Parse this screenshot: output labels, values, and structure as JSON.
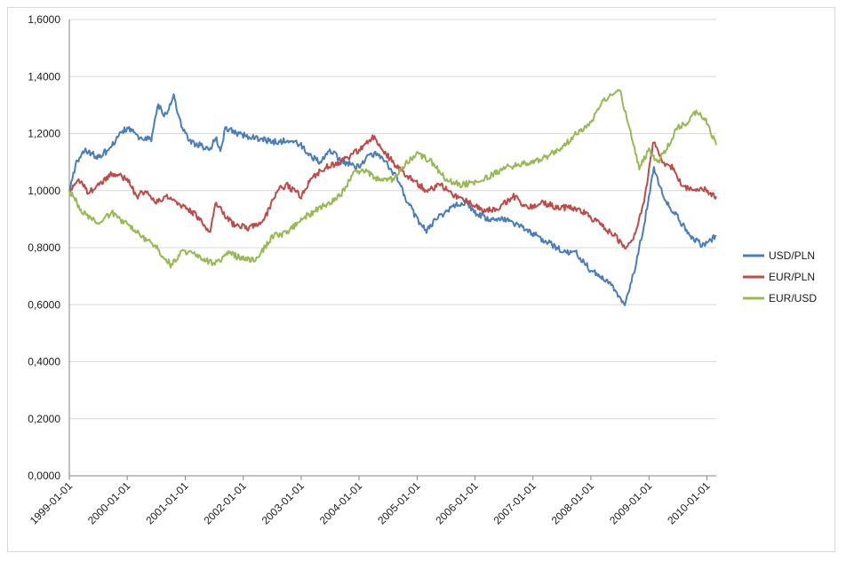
{
  "chart_data": {
    "type": "line",
    "title": "",
    "xlabel": "",
    "ylabel": "",
    "ylim": [
      0,
      1.6
    ],
    "y_ticks": [
      "0,0000",
      "0,2000",
      "0,4000",
      "0,6000",
      "0,8000",
      "1,0000",
      "1,2000",
      "1,4000",
      "1,6000"
    ],
    "x_ticks": [
      "1999-01-01",
      "2000-01-01",
      "2001-01-01",
      "2002-01-01",
      "2003-01-01",
      "2004-01-01",
      "2005-01-01",
      "2006-01-01",
      "2007-01-01",
      "2008-01-01",
      "2009-01-01",
      "2010-01-01"
    ],
    "x_range": [
      "1999-01-01",
      "2010-03-01"
    ],
    "grid": "horizontal",
    "legend_position": "right",
    "series": [
      {
        "name": "USD/PLN",
        "color": "#4a7ebb",
        "points": [
          [
            "1999-01-01",
            1.0
          ],
          [
            "1999-02-15",
            1.1
          ],
          [
            "1999-04-01",
            1.14
          ],
          [
            "1999-07-01",
            1.12
          ],
          [
            "1999-09-01",
            1.14
          ],
          [
            "1999-11-15",
            1.2
          ],
          [
            "2000-01-01",
            1.22
          ],
          [
            "2000-04-01",
            1.18
          ],
          [
            "2000-06-01",
            1.18
          ],
          [
            "2000-07-15",
            1.3
          ],
          [
            "2000-09-01",
            1.26
          ],
          [
            "2000-10-20",
            1.33
          ],
          [
            "2000-12-01",
            1.24
          ],
          [
            "2001-01-01",
            1.2
          ],
          [
            "2001-02-01",
            1.17
          ],
          [
            "2001-04-01",
            1.16
          ],
          [
            "2001-06-01",
            1.14
          ],
          [
            "2001-07-10",
            1.19
          ],
          [
            "2001-08-10",
            1.14
          ],
          [
            "2001-09-10",
            1.22
          ],
          [
            "2001-12-01",
            1.2
          ],
          [
            "2002-02-01",
            1.19
          ],
          [
            "2002-05-01",
            1.18
          ],
          [
            "2002-08-01",
            1.17
          ],
          [
            "2002-11-01",
            1.18
          ],
          [
            "2003-01-01",
            1.16
          ],
          [
            "2003-03-01",
            1.12
          ],
          [
            "2003-05-01",
            1.1
          ],
          [
            "2003-07-01",
            1.14
          ],
          [
            "2003-10-01",
            1.1
          ],
          [
            "2004-01-01",
            1.08
          ],
          [
            "2004-03-01",
            1.12
          ],
          [
            "2004-05-01",
            1.13
          ],
          [
            "2004-07-01",
            1.09
          ],
          [
            "2004-09-01",
            1.04
          ],
          [
            "2004-11-01",
            0.96
          ],
          [
            "2005-01-01",
            0.9
          ],
          [
            "2005-03-01",
            0.86
          ],
          [
            "2005-05-01",
            0.9
          ],
          [
            "2005-08-01",
            0.94
          ],
          [
            "2005-11-01",
            0.96
          ],
          [
            "2006-01-01",
            0.92
          ],
          [
            "2006-04-01",
            0.9
          ],
          [
            "2006-07-01",
            0.9
          ],
          [
            "2006-10-01",
            0.88
          ],
          [
            "2007-01-01",
            0.85
          ],
          [
            "2007-04-01",
            0.82
          ],
          [
            "2007-07-01",
            0.79
          ],
          [
            "2007-10-01",
            0.78
          ],
          [
            "2008-01-01",
            0.72
          ],
          [
            "2008-04-01",
            0.69
          ],
          [
            "2008-06-01",
            0.65
          ],
          [
            "2008-08-01",
            0.6
          ],
          [
            "2008-10-01",
            0.72
          ],
          [
            "2008-12-01",
            0.88
          ],
          [
            "2009-02-01",
            1.08
          ],
          [
            "2009-04-01",
            0.98
          ],
          [
            "2009-06-01",
            0.93
          ],
          [
            "2009-08-01",
            0.88
          ],
          [
            "2009-10-01",
            0.83
          ],
          [
            "2009-12-01",
            0.81
          ],
          [
            "2010-02-01",
            0.83
          ],
          [
            "2010-03-01",
            0.84
          ]
        ]
      },
      {
        "name": "EUR/PLN",
        "color": "#be4b48",
        "points": [
          [
            "1999-01-01",
            1.0
          ],
          [
            "1999-03-01",
            1.04
          ],
          [
            "1999-05-01",
            0.99
          ],
          [
            "1999-07-01",
            1.02
          ],
          [
            "1999-10-01",
            1.06
          ],
          [
            "2000-01-01",
            1.04
          ],
          [
            "2000-03-01",
            0.98
          ],
          [
            "2000-05-01",
            1.0
          ],
          [
            "2000-07-01",
            0.96
          ],
          [
            "2000-09-01",
            0.98
          ],
          [
            "2000-12-01",
            0.95
          ],
          [
            "2001-03-01",
            0.92
          ],
          [
            "2001-06-01",
            0.85
          ],
          [
            "2001-07-15",
            0.96
          ],
          [
            "2001-09-01",
            0.92
          ],
          [
            "2001-11-01",
            0.88
          ],
          [
            "2002-02-01",
            0.87
          ],
          [
            "2002-05-01",
            0.88
          ],
          [
            "2002-08-01",
            1.0
          ],
          [
            "2002-10-01",
            1.02
          ],
          [
            "2003-01-01",
            0.98
          ],
          [
            "2003-03-01",
            1.04
          ],
          [
            "2003-06-01",
            1.08
          ],
          [
            "2003-09-01",
            1.1
          ],
          [
            "2003-12-01",
            1.13
          ],
          [
            "2004-02-01",
            1.16
          ],
          [
            "2004-04-01",
            1.19
          ],
          [
            "2004-06-01",
            1.14
          ],
          [
            "2004-09-01",
            1.08
          ],
          [
            "2004-12-01",
            1.04
          ],
          [
            "2005-03-01",
            1.0
          ],
          [
            "2005-06-01",
            1.02
          ],
          [
            "2005-09-01",
            0.98
          ],
          [
            "2005-12-01",
            0.96
          ],
          [
            "2006-03-01",
            0.93
          ],
          [
            "2006-06-01",
            0.94
          ],
          [
            "2006-09-01",
            0.98
          ],
          [
            "2006-12-01",
            0.94
          ],
          [
            "2007-03-01",
            0.96
          ],
          [
            "2007-06-01",
            0.94
          ],
          [
            "2007-09-01",
            0.94
          ],
          [
            "2007-12-01",
            0.92
          ],
          [
            "2008-03-01",
            0.88
          ],
          [
            "2008-06-01",
            0.84
          ],
          [
            "2008-08-01",
            0.8
          ],
          [
            "2008-10-01",
            0.84
          ],
          [
            "2008-12-01",
            0.96
          ],
          [
            "2009-02-01",
            1.18
          ],
          [
            "2009-04-01",
            1.1
          ],
          [
            "2009-06-01",
            1.08
          ],
          [
            "2009-08-01",
            1.02
          ],
          [
            "2009-10-01",
            1.0
          ],
          [
            "2009-12-01",
            1.01
          ],
          [
            "2010-03-01",
            0.98
          ]
        ]
      },
      {
        "name": "EUR/USD",
        "color": "#98b954",
        "points": [
          [
            "1999-01-01",
            1.0
          ],
          [
            "1999-04-01",
            0.92
          ],
          [
            "1999-07-01",
            0.89
          ],
          [
            "1999-10-01",
            0.92
          ],
          [
            "2000-01-01",
            0.88
          ],
          [
            "2000-04-01",
            0.84
          ],
          [
            "2000-07-01",
            0.8
          ],
          [
            "2000-10-01",
            0.74
          ],
          [
            "2000-12-01",
            0.78
          ],
          [
            "2001-02-01",
            0.79
          ],
          [
            "2001-05-01",
            0.76
          ],
          [
            "2001-07-01",
            0.74
          ],
          [
            "2001-10-01",
            0.78
          ],
          [
            "2002-01-01",
            0.76
          ],
          [
            "2002-04-01",
            0.76
          ],
          [
            "2002-07-01",
            0.84
          ],
          [
            "2002-10-01",
            0.85
          ],
          [
            "2003-01-01",
            0.9
          ],
          [
            "2003-04-01",
            0.93
          ],
          [
            "2003-07-01",
            0.96
          ],
          [
            "2003-09-01",
            0.98
          ],
          [
            "2003-12-01",
            1.06
          ],
          [
            "2004-02-01",
            1.07
          ],
          [
            "2004-05-01",
            1.04
          ],
          [
            "2004-08-01",
            1.04
          ],
          [
            "2004-11-01",
            1.1
          ],
          [
            "2005-01-01",
            1.13
          ],
          [
            "2005-04-01",
            1.1
          ],
          [
            "2005-07-01",
            1.04
          ],
          [
            "2005-10-01",
            1.02
          ],
          [
            "2006-01-01",
            1.03
          ],
          [
            "2006-04-01",
            1.05
          ],
          [
            "2006-07-01",
            1.08
          ],
          [
            "2006-10-01",
            1.09
          ],
          [
            "2007-01-01",
            1.1
          ],
          [
            "2007-04-01",
            1.12
          ],
          [
            "2007-07-01",
            1.15
          ],
          [
            "2007-10-01",
            1.2
          ],
          [
            "2008-01-01",
            1.24
          ],
          [
            "2008-03-01",
            1.3
          ],
          [
            "2008-05-01",
            1.34
          ],
          [
            "2008-07-01",
            1.35
          ],
          [
            "2008-09-01",
            1.22
          ],
          [
            "2008-11-01",
            1.08
          ],
          [
            "2009-01-01",
            1.14
          ],
          [
            "2009-03-01",
            1.1
          ],
          [
            "2009-05-01",
            1.16
          ],
          [
            "2009-07-01",
            1.22
          ],
          [
            "2009-09-01",
            1.24
          ],
          [
            "2009-11-01",
            1.28
          ],
          [
            "2010-01-01",
            1.24
          ],
          [
            "2010-03-01",
            1.16
          ]
        ]
      }
    ]
  }
}
